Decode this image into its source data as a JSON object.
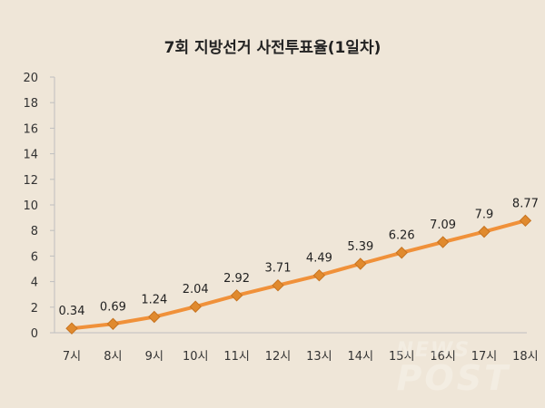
{
  "chart_data": {
    "type": "line",
    "title": "7회 지방선거 사전투표율(1일차)",
    "categories": [
      "7시",
      "8시",
      "9시",
      "10시",
      "11시",
      "12시",
      "13시",
      "14시",
      "15시",
      "16시",
      "17시",
      "18시"
    ],
    "values": [
      0.34,
      0.69,
      1.24,
      2.04,
      2.92,
      3.71,
      4.49,
      5.39,
      6.26,
      7.09,
      7.9,
      8.77
    ],
    "labels": [
      "0.34",
      "0.69",
      "1.24",
      "2.04",
      "2.92",
      "3.71",
      "4.49",
      "5.39",
      "6.26",
      "7.09",
      "7.9",
      "8.77"
    ],
    "ylim": [
      0,
      20
    ],
    "yticks": [
      0,
      2,
      4,
      6,
      8,
      10,
      12,
      14,
      16,
      18,
      20
    ],
    "grid": false,
    "colors": {
      "line": "#f0913a",
      "marker": "#e08a2e",
      "marker_edge": "#c7731f",
      "highlight_label": "#e8262b",
      "axis": "#bfbfbf"
    }
  },
  "watermark": {
    "line1": "NEWS",
    "line2": "POST"
  }
}
